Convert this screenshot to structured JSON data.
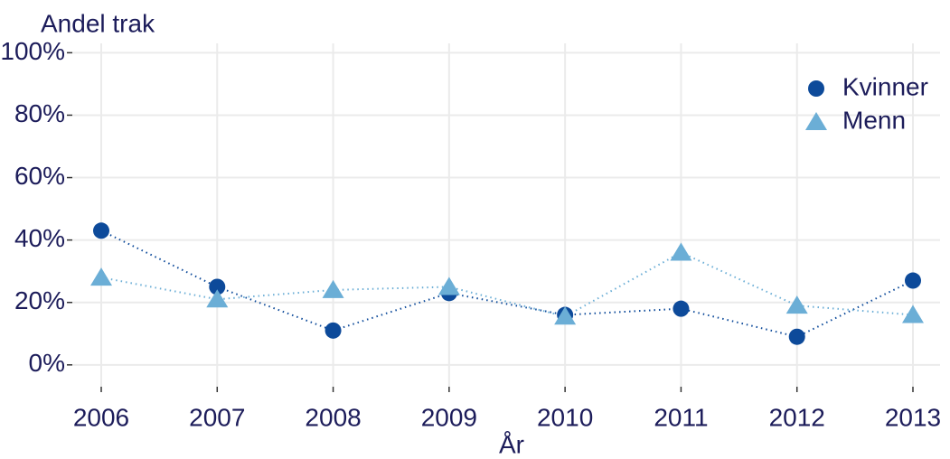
{
  "chart_data": {
    "type": "line",
    "y_label": "Andel trak",
    "x_label": "År",
    "categories": [
      "2006",
      "2007",
      "2008",
      "2009",
      "2010",
      "2011",
      "2012",
      "2013"
    ],
    "series": [
      {
        "name": "Kvinner",
        "color": "#0d4a9a",
        "marker": "circle",
        "values": [
          43,
          25,
          11,
          23,
          16,
          18,
          9,
          27
        ]
      },
      {
        "name": "Menn",
        "color": "#6baed6",
        "marker": "triangle",
        "values": [
          28,
          21,
          24,
          25,
          15.5,
          36,
          19,
          16
        ]
      }
    ],
    "ylim": [
      -7,
      103
    ],
    "yticks": [
      {
        "value": 0,
        "label": "0%"
      },
      {
        "value": 20,
        "label": "20%"
      },
      {
        "value": 40,
        "label": "40%"
      },
      {
        "value": 60,
        "label": "60%"
      },
      {
        "value": 80,
        "label": "80%"
      },
      {
        "value": 100,
        "label": "100%"
      }
    ],
    "grid": true,
    "legend": "top-right"
  }
}
